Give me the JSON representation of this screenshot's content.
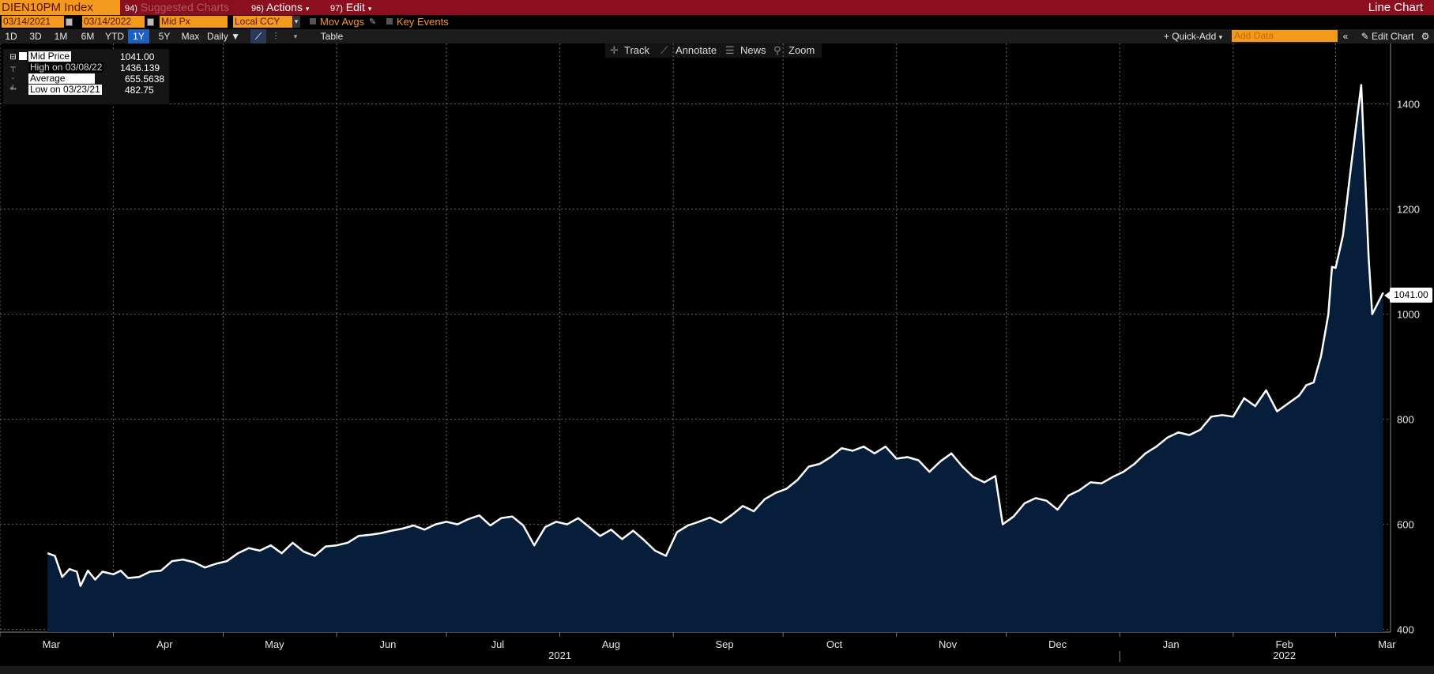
{
  "header": {
    "ticker": "DIEN10PM Index",
    "suggested_num": "94)",
    "suggested_label": "Suggested Charts",
    "actions_num": "96)",
    "actions_label": "Actions",
    "edit_num": "97)",
    "edit_label": "Edit",
    "chart_title": "Line Chart"
  },
  "options": {
    "start_date": "03/14/2021",
    "end_date": "03/14/2022",
    "field": "Mid Px",
    "currency": "Local CCY",
    "mov_avgs": "Mov Avgs",
    "key_events": "Key Events"
  },
  "periods": [
    "1D",
    "3D",
    "1M",
    "6M",
    "YTD",
    "1Y",
    "5Y",
    "Max"
  ],
  "active_period": "1Y",
  "frequency": "Daily",
  "table_label": "Table",
  "quick_add": "+ Quick-Add",
  "add_data_placeholder": "Add Data",
  "edit_chart": "Edit Chart",
  "toolbar": {
    "track": "Track",
    "annotate": "Annotate",
    "news": "News",
    "zoom": "Zoom"
  },
  "legend": {
    "mid_price_label": "Mid Price",
    "mid_price_value": "1041.00",
    "high_label": "High on 03/08/22",
    "high_value": "1436.139",
    "average_label": "Average",
    "average_value": "655.5638",
    "low_label": "Low on 03/23/21",
    "low_value": "482.75"
  },
  "last_price_tag": "1041.00",
  "colors": {
    "line": "#ffffff",
    "area_fill": "#061e3a",
    "accent_orange": "#f39a1e",
    "header_red": "#8b0f1e",
    "active_blue": "#1f5fbf"
  },
  "chart_data": {
    "type": "area",
    "series": [
      {
        "name": "Mid Price",
        "points": [
          [
            "2021-03-14",
            545
          ],
          [
            "2021-03-16",
            540
          ],
          [
            "2021-03-18",
            500
          ],
          [
            "2021-03-20",
            515
          ],
          [
            "2021-03-22",
            510
          ],
          [
            "2021-03-23",
            482.75
          ],
          [
            "2021-03-25",
            512
          ],
          [
            "2021-03-27",
            495
          ],
          [
            "2021-03-29",
            510
          ],
          [
            "2021-04-01",
            505
          ],
          [
            "2021-04-03",
            512
          ],
          [
            "2021-04-05",
            498
          ],
          [
            "2021-04-08",
            500
          ],
          [
            "2021-04-11",
            510
          ],
          [
            "2021-04-14",
            512
          ],
          [
            "2021-04-17",
            530
          ],
          [
            "2021-04-20",
            533
          ],
          [
            "2021-04-23",
            528
          ],
          [
            "2021-04-26",
            518
          ],
          [
            "2021-04-29",
            525
          ],
          [
            "2021-05-02",
            530
          ],
          [
            "2021-05-05",
            545
          ],
          [
            "2021-05-08",
            555
          ],
          [
            "2021-05-11",
            550
          ],
          [
            "2021-05-14",
            560
          ],
          [
            "2021-05-17",
            545
          ],
          [
            "2021-05-20",
            565
          ],
          [
            "2021-05-23",
            548
          ],
          [
            "2021-05-26",
            540
          ],
          [
            "2021-05-29",
            558
          ],
          [
            "2021-06-01",
            560
          ],
          [
            "2021-06-04",
            565
          ],
          [
            "2021-06-07",
            578
          ],
          [
            "2021-06-10",
            580
          ],
          [
            "2021-06-13",
            583
          ],
          [
            "2021-06-16",
            588
          ],
          [
            "2021-06-19",
            592
          ],
          [
            "2021-06-22",
            598
          ],
          [
            "2021-06-25",
            590
          ],
          [
            "2021-06-28",
            600
          ],
          [
            "2021-07-01",
            605
          ],
          [
            "2021-07-04",
            600
          ],
          [
            "2021-07-07",
            610
          ],
          [
            "2021-07-10",
            617
          ],
          [
            "2021-07-13",
            598
          ],
          [
            "2021-07-16",
            612
          ],
          [
            "2021-07-19",
            615
          ],
          [
            "2021-07-22",
            598
          ],
          [
            "2021-07-25",
            560
          ],
          [
            "2021-07-28",
            595
          ],
          [
            "2021-07-31",
            605
          ],
          [
            "2021-08-03",
            600
          ],
          [
            "2021-08-06",
            612
          ],
          [
            "2021-08-09",
            595
          ],
          [
            "2021-08-12",
            578
          ],
          [
            "2021-08-15",
            590
          ],
          [
            "2021-08-18",
            572
          ],
          [
            "2021-08-21",
            588
          ],
          [
            "2021-08-24",
            570
          ],
          [
            "2021-08-27",
            550
          ],
          [
            "2021-08-30",
            540
          ],
          [
            "2021-09-02",
            585
          ],
          [
            "2021-09-05",
            598
          ],
          [
            "2021-09-08",
            605
          ],
          [
            "2021-09-11",
            613
          ],
          [
            "2021-09-14",
            603
          ],
          [
            "2021-09-17",
            618
          ],
          [
            "2021-09-20",
            635
          ],
          [
            "2021-09-23",
            625
          ],
          [
            "2021-09-26",
            648
          ],
          [
            "2021-09-29",
            660
          ],
          [
            "2021-10-02",
            668
          ],
          [
            "2021-10-05",
            685
          ],
          [
            "2021-10-08",
            710
          ],
          [
            "2021-10-11",
            715
          ],
          [
            "2021-10-14",
            728
          ],
          [
            "2021-10-17",
            745
          ],
          [
            "2021-10-20",
            740
          ],
          [
            "2021-10-23",
            748
          ],
          [
            "2021-10-26",
            735
          ],
          [
            "2021-10-29",
            748
          ],
          [
            "2021-11-01",
            725
          ],
          [
            "2021-11-04",
            728
          ],
          [
            "2021-11-07",
            722
          ],
          [
            "2021-11-10",
            700
          ],
          [
            "2021-11-13",
            720
          ],
          [
            "2021-11-16",
            735
          ],
          [
            "2021-11-19",
            710
          ],
          [
            "2021-11-22",
            690
          ],
          [
            "2021-11-25",
            680
          ],
          [
            "2021-11-28",
            692
          ],
          [
            "2021-11-30",
            600
          ],
          [
            "2021-12-03",
            615
          ],
          [
            "2021-12-06",
            640
          ],
          [
            "2021-12-09",
            650
          ],
          [
            "2021-12-12",
            645
          ],
          [
            "2021-12-15",
            628
          ],
          [
            "2021-12-18",
            655
          ],
          [
            "2021-12-21",
            665
          ],
          [
            "2021-12-24",
            680
          ],
          [
            "2021-12-27",
            678
          ],
          [
            "2021-12-30",
            690
          ],
          [
            "2022-01-02",
            700
          ],
          [
            "2022-01-05",
            715
          ],
          [
            "2022-01-08",
            735
          ],
          [
            "2022-01-11",
            748
          ],
          [
            "2022-01-14",
            765
          ],
          [
            "2022-01-17",
            775
          ],
          [
            "2022-01-20",
            770
          ],
          [
            "2022-01-23",
            780
          ],
          [
            "2022-01-26",
            805
          ],
          [
            "2022-01-29",
            808
          ],
          [
            "2022-02-01",
            805
          ],
          [
            "2022-02-04",
            840
          ],
          [
            "2022-02-07",
            825
          ],
          [
            "2022-02-10",
            855
          ],
          [
            "2022-02-13",
            815
          ],
          [
            "2022-02-16",
            830
          ],
          [
            "2022-02-19",
            845
          ],
          [
            "2022-02-21",
            865
          ],
          [
            "2022-02-23",
            870
          ],
          [
            "2022-02-25",
            920
          ],
          [
            "2022-02-27",
            1000
          ],
          [
            "2022-02-28",
            1090
          ],
          [
            "2022-03-01",
            1088
          ],
          [
            "2022-03-03",
            1150
          ],
          [
            "2022-03-05",
            1270
          ],
          [
            "2022-03-08",
            1436.139
          ],
          [
            "2022-03-10",
            1110
          ],
          [
            "2022-03-11",
            1000
          ],
          [
            "2022-03-14",
            1041
          ]
        ]
      }
    ],
    "x_range": [
      "2021-03-01",
      "2022-03-16"
    ],
    "ylim": [
      395,
      1515
    ],
    "y_ticks": [
      400,
      600,
      800,
      1000,
      1200,
      1400
    ],
    "x_month_labels": [
      [
        "2021-03-15",
        "Mar"
      ],
      [
        "2021-04-15",
        "Apr"
      ],
      [
        "2021-05-15",
        "May"
      ],
      [
        "2021-06-15",
        "Jun"
      ],
      [
        "2021-07-15",
        "Jul"
      ],
      [
        "2021-08-15",
        "Aug"
      ],
      [
        "2021-09-15",
        "Sep"
      ],
      [
        "2021-10-15",
        "Oct"
      ],
      [
        "2021-11-15",
        "Nov"
      ],
      [
        "2021-12-15",
        "Dec"
      ],
      [
        "2022-01-15",
        "Jan"
      ],
      [
        "2022-02-15",
        "Feb"
      ],
      [
        "2022-03-15",
        "Mar"
      ]
    ],
    "x_year_labels": [
      [
        "2021-08-01",
        "2021"
      ],
      [
        "2022-02-15",
        "2022"
      ]
    ],
    "grid": true,
    "legend_position": "top-left"
  }
}
